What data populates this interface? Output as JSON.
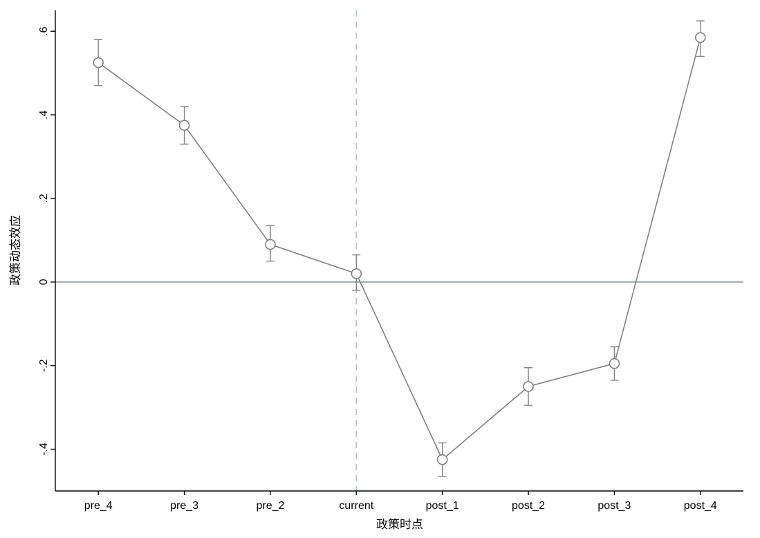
{
  "chart_data": {
    "type": "line",
    "title": "",
    "xlabel": "政策时点",
    "ylabel": "政策动态效应",
    "categories": [
      "pre_4",
      "pre_3",
      "pre_2",
      "current",
      "post_1",
      "post_2",
      "post_3",
      "post_4"
    ],
    "series": [
      {
        "name": "政策动态效应",
        "marker": "hollow-circle",
        "values": [
          0.525,
          0.375,
          0.09,
          0.02,
          -0.425,
          -0.25,
          -0.195,
          0.585
        ],
        "ci_low": [
          0.47,
          0.33,
          0.05,
          -0.02,
          -0.465,
          -0.295,
          -0.235,
          0.54
        ],
        "ci_high": [
          0.58,
          0.42,
          0.135,
          0.065,
          -0.385,
          -0.205,
          -0.155,
          0.625
        ]
      }
    ],
    "ylim": [
      -0.5,
      0.65
    ],
    "yticks": [
      -0.4,
      -0.2,
      0,
      0.2,
      0.4,
      0.6
    ],
    "ytick_labels": [
      "-.4",
      "-.2",
      "0",
      ".2",
      ".4",
      ".6"
    ],
    "reference_lines": {
      "zero_line_y": 0,
      "vline_category": "current",
      "vline_style": "dashed"
    },
    "grid": false,
    "legend": false,
    "colors": {
      "series": "#808080",
      "error_bar": "#808080",
      "zero_line": "#7c949c",
      "vline": "#a9c6c9",
      "axis": "#000000"
    }
  }
}
